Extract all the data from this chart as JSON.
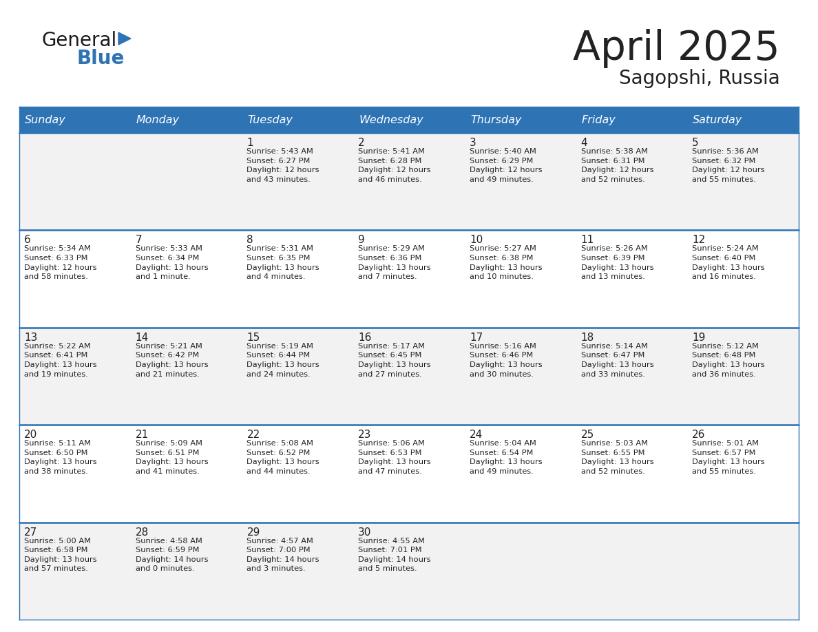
{
  "title": "April 2025",
  "subtitle": "Sagopshi, Russia",
  "header_bg": "#2E74B5",
  "header_text_color": "#FFFFFF",
  "cell_bg_odd": "#F2F2F2",
  "cell_bg_even": "#FFFFFF",
  "border_color": "#2E74B5",
  "text_color": "#222222",
  "days_of_week": [
    "Sunday",
    "Monday",
    "Tuesday",
    "Wednesday",
    "Thursday",
    "Friday",
    "Saturday"
  ],
  "calendar": [
    [
      {
        "day": "",
        "info": ""
      },
      {
        "day": "",
        "info": ""
      },
      {
        "day": "1",
        "info": "Sunrise: 5:43 AM\nSunset: 6:27 PM\nDaylight: 12 hours\nand 43 minutes."
      },
      {
        "day": "2",
        "info": "Sunrise: 5:41 AM\nSunset: 6:28 PM\nDaylight: 12 hours\nand 46 minutes."
      },
      {
        "day": "3",
        "info": "Sunrise: 5:40 AM\nSunset: 6:29 PM\nDaylight: 12 hours\nand 49 minutes."
      },
      {
        "day": "4",
        "info": "Sunrise: 5:38 AM\nSunset: 6:31 PM\nDaylight: 12 hours\nand 52 minutes."
      },
      {
        "day": "5",
        "info": "Sunrise: 5:36 AM\nSunset: 6:32 PM\nDaylight: 12 hours\nand 55 minutes."
      }
    ],
    [
      {
        "day": "6",
        "info": "Sunrise: 5:34 AM\nSunset: 6:33 PM\nDaylight: 12 hours\nand 58 minutes."
      },
      {
        "day": "7",
        "info": "Sunrise: 5:33 AM\nSunset: 6:34 PM\nDaylight: 13 hours\nand 1 minute."
      },
      {
        "day": "8",
        "info": "Sunrise: 5:31 AM\nSunset: 6:35 PM\nDaylight: 13 hours\nand 4 minutes."
      },
      {
        "day": "9",
        "info": "Sunrise: 5:29 AM\nSunset: 6:36 PM\nDaylight: 13 hours\nand 7 minutes."
      },
      {
        "day": "10",
        "info": "Sunrise: 5:27 AM\nSunset: 6:38 PM\nDaylight: 13 hours\nand 10 minutes."
      },
      {
        "day": "11",
        "info": "Sunrise: 5:26 AM\nSunset: 6:39 PM\nDaylight: 13 hours\nand 13 minutes."
      },
      {
        "day": "12",
        "info": "Sunrise: 5:24 AM\nSunset: 6:40 PM\nDaylight: 13 hours\nand 16 minutes."
      }
    ],
    [
      {
        "day": "13",
        "info": "Sunrise: 5:22 AM\nSunset: 6:41 PM\nDaylight: 13 hours\nand 19 minutes."
      },
      {
        "day": "14",
        "info": "Sunrise: 5:21 AM\nSunset: 6:42 PM\nDaylight: 13 hours\nand 21 minutes."
      },
      {
        "day": "15",
        "info": "Sunrise: 5:19 AM\nSunset: 6:44 PM\nDaylight: 13 hours\nand 24 minutes."
      },
      {
        "day": "16",
        "info": "Sunrise: 5:17 AM\nSunset: 6:45 PM\nDaylight: 13 hours\nand 27 minutes."
      },
      {
        "day": "17",
        "info": "Sunrise: 5:16 AM\nSunset: 6:46 PM\nDaylight: 13 hours\nand 30 minutes."
      },
      {
        "day": "18",
        "info": "Sunrise: 5:14 AM\nSunset: 6:47 PM\nDaylight: 13 hours\nand 33 minutes."
      },
      {
        "day": "19",
        "info": "Sunrise: 5:12 AM\nSunset: 6:48 PM\nDaylight: 13 hours\nand 36 minutes."
      }
    ],
    [
      {
        "day": "20",
        "info": "Sunrise: 5:11 AM\nSunset: 6:50 PM\nDaylight: 13 hours\nand 38 minutes."
      },
      {
        "day": "21",
        "info": "Sunrise: 5:09 AM\nSunset: 6:51 PM\nDaylight: 13 hours\nand 41 minutes."
      },
      {
        "day": "22",
        "info": "Sunrise: 5:08 AM\nSunset: 6:52 PM\nDaylight: 13 hours\nand 44 minutes."
      },
      {
        "day": "23",
        "info": "Sunrise: 5:06 AM\nSunset: 6:53 PM\nDaylight: 13 hours\nand 47 minutes."
      },
      {
        "day": "24",
        "info": "Sunrise: 5:04 AM\nSunset: 6:54 PM\nDaylight: 13 hours\nand 49 minutes."
      },
      {
        "day": "25",
        "info": "Sunrise: 5:03 AM\nSunset: 6:55 PM\nDaylight: 13 hours\nand 52 minutes."
      },
      {
        "day": "26",
        "info": "Sunrise: 5:01 AM\nSunset: 6:57 PM\nDaylight: 13 hours\nand 55 minutes."
      }
    ],
    [
      {
        "day": "27",
        "info": "Sunrise: 5:00 AM\nSunset: 6:58 PM\nDaylight: 13 hours\nand 57 minutes."
      },
      {
        "day": "28",
        "info": "Sunrise: 4:58 AM\nSunset: 6:59 PM\nDaylight: 14 hours\nand 0 minutes."
      },
      {
        "day": "29",
        "info": "Sunrise: 4:57 AM\nSunset: 7:00 PM\nDaylight: 14 hours\nand 3 minutes."
      },
      {
        "day": "30",
        "info": "Sunrise: 4:55 AM\nSunset: 7:01 PM\nDaylight: 14 hours\nand 5 minutes."
      },
      {
        "day": "",
        "info": ""
      },
      {
        "day": "",
        "info": ""
      },
      {
        "day": "",
        "info": ""
      }
    ]
  ],
  "logo_general_color": "#1a1a1a",
  "logo_blue_color": "#2E74B5",
  "fig_bg": "#FFFFFF",
  "fig_width": 11.88,
  "fig_height": 9.18,
  "dpi": 100
}
